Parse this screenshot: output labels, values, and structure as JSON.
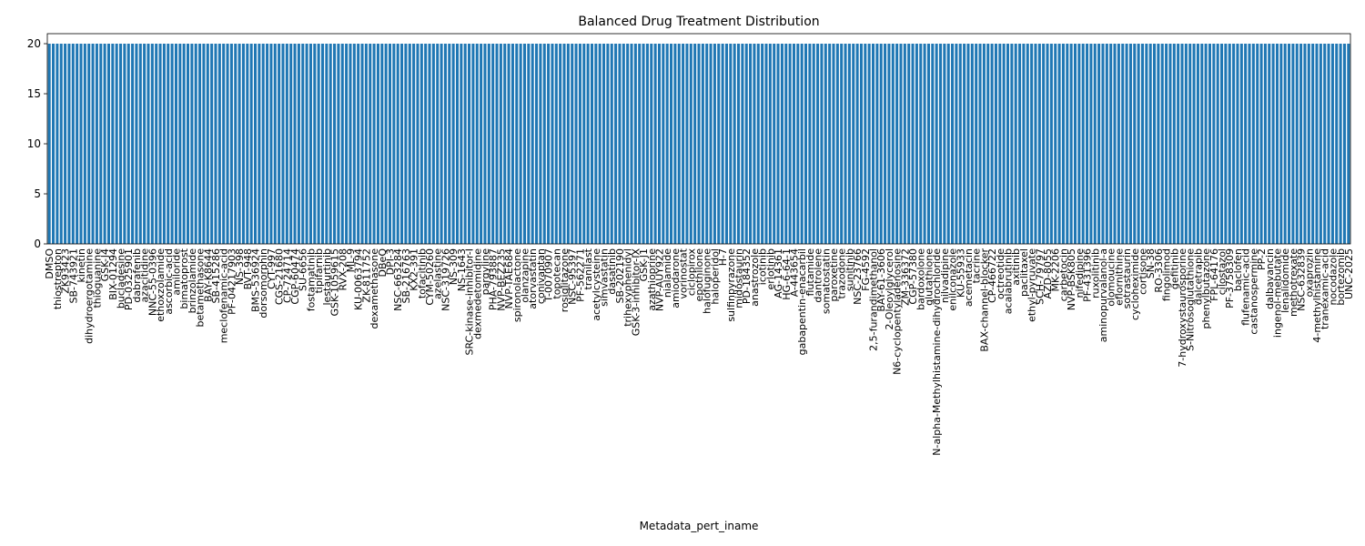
{
  "chart_data": {
    "type": "bar",
    "title": "Balanced Drug Treatment Distribution",
    "x_label": "Metadata_pert_iname",
    "color": "#1f77b4",
    "ylim": [
      0,
      21
    ],
    "yticks": [
      0,
      5,
      10,
      15,
      20
    ],
    "categories": [
      "DMSO",
      null,
      "thiostrepton",
      null,
      "ZK93423",
      null,
      "SB-743921",
      null,
      "kinetin",
      null,
      "dihydroergotamine",
      null,
      "thioguanine",
      null,
      "GSK-J4",
      null,
      "BIX-01294",
      null,
      "bucladesine",
      null,
      "PD-0325901",
      null,
      "dabrafenib",
      null,
      "azacitidine",
      null,
      "NNC-55-0396",
      null,
      "ethoxzolamide",
      null,
      "ascorbic-acid",
      null,
      "amiloride",
      null,
      "bimatoprost",
      null,
      "brinzolamide",
      null,
      "betamethasone",
      null,
      "BAY-K8644",
      null,
      "SB-415286",
      null,
      "meclofenamic-acid",
      null,
      "PF-04217903",
      null,
      "NS-398",
      null,
      "BVT-948",
      null,
      "BMS-536924",
      null,
      "dorsomorphin",
      null,
      "CYT-997",
      null,
      "CGS-21680",
      null,
      "CP-724714",
      null,
      "CGP-60474",
      null,
      "SU-6656",
      null,
      "fostamatinib",
      null,
      "tipifarnib",
      null,
      "lestaurtinib",
      null,
      "GSK-1059615",
      null,
      "RVX-208",
      null,
      "ML-9",
      null,
      "KU-0063794",
      null,
      "ZK-811752",
      null,
      "dexamethasone",
      null,
      "DBeQ",
      null,
      "DPI-3",
      null,
      "NSC-663284",
      null,
      "SB-216763",
      null,
      "KX2-391",
      null,
      "tofacitinib",
      null,
      "CYM-50260",
      null,
      "azelastine",
      null,
      "NSC-319726",
      null,
      "NS-309",
      null,
      "NS-1643",
      null,
      "SRC-kinase-inhibitor-I",
      null,
      "dexmedetomidine",
      null,
      "pargyline",
      null,
      "PHA-793887",
      null,
      "NVP-BEZ235",
      null,
      "NVP-TAE684",
      null,
      "spironolactone",
      null,
      "olanzapine",
      null,
      "atorvastatin",
      null,
      "conivaptan",
      null,
      "T-0070907",
      null,
      "topotecan",
      null,
      "rosiglitazone",
      null,
      "NSC-95397",
      null,
      "PF-562271",
      null,
      "tranilast",
      null,
      "acetylcysteine",
      null,
      "simvastatin",
      null,
      "dasatinib",
      null,
      "SB-202190",
      null,
      "trihexyphenidyl",
      null,
      "GSK-3-inhibitor-IX",
      null,
      "GSK-J1",
      null,
      "azathioprine",
      null,
      "NVP-AUY922",
      null,
      "nialamide",
      null,
      "amiodarone",
      null,
      "vorinostat",
      null,
      "ciclopirox",
      null,
      "epothilone",
      null,
      "halofuginone",
      null,
      "haloperidol",
      null,
      "H-7",
      null,
      "sulfinpyrazone",
      null,
      "midostaurin",
      null,
      "PD-184352",
      null,
      "anastrozole",
      null,
      "icotinib",
      null,
      "erlotinib",
      null,
      "AG-14361",
      null,
      "HG-6-64-1",
      null,
      "A-443654",
      null,
      "gabapentin-enacarbil",
      null,
      "flutamide",
      null,
      "dantrolene",
      null,
      "somatostatin",
      null,
      "paroxetine",
      null,
      "trazodone",
      null,
      "sunitinib",
      null,
      "NSC-23766",
      null,
      "FG-4592",
      null,
      "2,5-furandimethanol",
      null,
      "BAY-61-3606",
      null,
      "2-Oleoylglycerol",
      null,
      "N6-cyclopentyladenosine",
      null,
      "ZM-336372",
      null,
      "CGP-57380",
      null,
      "bardoxolone",
      null,
      "glutathione",
      null,
      "N-alpha-Methylhistamine-dihydrochloride",
      null,
      "nilvadipine",
      null,
      "enilconazole",
      null,
      "KU-55933",
      null,
      "acemetacin",
      null,
      "tacrine",
      null,
      "BAX-channel-blocker",
      null,
      "CP-466722",
      null,
      "octreotide",
      null,
      "acalabrutinib",
      null,
      "axitinib",
      null,
      "paclitaxel",
      null,
      "ethyl-pyruvate",
      null,
      "SCH-79797",
      null,
      "AZD-8055",
      null,
      "MK-2206",
      null,
      "carbetocin",
      null,
      "NVP-BSK805",
      null,
      "nifedipine",
      null,
      "PF-431396",
      null,
      "ruxolitinib",
      null,
      "aminopurvalanol-a",
      null,
      "olomoucine",
      null,
      "eflornithine",
      null,
      "sotrastaurin",
      null,
      "cycloheximide",
      null,
      "cortisone",
      null,
      "SN-38",
      null,
      "RO-3306",
      null,
      "fingolimod",
      null,
      "gefitinib",
      null,
      "7-hydroxystaurosporine",
      null,
      "S-Nitrosoglutathione",
      null,
      "dalcetrapib",
      null,
      "phenylbutazone",
      null,
      "FPL-64176",
      null,
      "cilostazol",
      null,
      "PF-3758309",
      null,
      "baclofen",
      null,
      "flufenamic-acid",
      null,
      "castanospermine",
      null,
      "PP-2",
      null,
      "dalbavancin",
      null,
      "ingenol-mebutate",
      null,
      "lenalidomide",
      null,
      "methotrexate",
      null,
      "NSC-632839",
      null,
      "oxaprozin",
      null,
      "4-methylhistamine",
      null,
      "tranexamic-acid",
      null,
      "nocodazole",
      null,
      "bortezomib",
      null,
      "UNC-2025"
    ],
    "values": [
      20,
      20,
      20,
      20,
      20,
      20,
      20,
      20,
      20,
      20,
      20,
      20,
      20,
      20,
      20,
      20,
      20,
      20,
      20,
      20,
      20,
      20,
      20,
      20,
      20,
      20,
      20,
      20,
      20,
      20,
      20,
      20,
      20,
      20,
      20,
      20,
      20,
      20,
      20,
      20,
      20,
      20,
      20,
      20,
      20,
      20,
      20,
      20,
      20,
      20,
      20,
      20,
      20,
      20,
      20,
      20,
      20,
      20,
      20,
      20,
      20,
      20,
      20,
      20,
      20,
      20,
      20,
      20,
      20,
      20,
      20,
      20,
      20,
      20,
      20,
      20,
      20,
      20,
      20,
      20,
      20,
      20,
      20,
      20,
      20,
      20,
      20,
      20,
      20,
      20,
      20,
      20,
      20,
      20,
      20,
      20,
      20,
      20,
      20,
      20,
      20,
      20,
      20,
      20,
      20,
      20,
      20,
      20,
      20,
      20,
      20,
      20,
      20,
      20,
      20,
      20,
      20,
      20,
      20,
      20,
      20,
      20,
      20,
      20,
      20,
      20,
      20,
      20,
      20,
      20,
      20,
      20,
      20,
      20,
      20,
      20,
      20,
      20,
      20,
      20,
      20,
      20,
      20,
      20,
      20,
      20,
      20,
      20,
      20,
      20,
      20,
      20,
      20,
      20,
      20,
      20,
      20,
      20,
      20,
      20,
      20,
      20,
      20,
      20,
      20,
      20,
      20,
      20,
      20,
      20,
      20,
      20,
      20,
      20,
      20,
      20,
      20,
      20,
      20,
      20,
      20,
      20,
      20,
      20,
      20,
      20,
      20,
      20,
      20,
      20,
      20,
      20,
      20,
      20,
      20,
      20,
      20,
      20,
      20,
      20,
      20,
      20,
      20,
      20,
      20,
      20,
      20,
      20,
      20,
      20,
      20,
      20,
      20,
      20,
      20,
      20,
      20,
      20,
      20,
      20,
      20,
      20,
      20,
      20,
      20,
      20,
      20,
      20,
      20,
      20,
      20,
      20,
      20,
      20,
      20,
      20,
      20,
      20,
      20,
      20,
      20,
      20,
      20,
      20,
      20,
      20,
      20,
      20,
      20,
      20,
      20,
      20,
      20,
      20,
      20,
      20,
      20,
      20,
      20,
      20,
      20,
      20,
      20,
      20,
      20,
      20,
      20,
      20,
      20,
      20,
      20,
      20,
      20,
      20,
      20,
      20,
      20,
      20,
      20,
      20,
      20,
      20,
      20,
      20,
      20,
      20,
      20,
      20,
      20,
      20,
      20,
      20,
      20,
      20,
      20,
      20,
      20,
      20,
      20,
      20,
      20,
      20,
      20,
      20,
      20,
      20,
      20,
      20,
      20,
      20,
      20,
      20,
      20,
      20,
      20,
      20,
      20,
      20,
      20,
      20,
      20,
      20,
      20,
      20,
      20,
      20,
      20,
      20,
      20
    ]
  }
}
